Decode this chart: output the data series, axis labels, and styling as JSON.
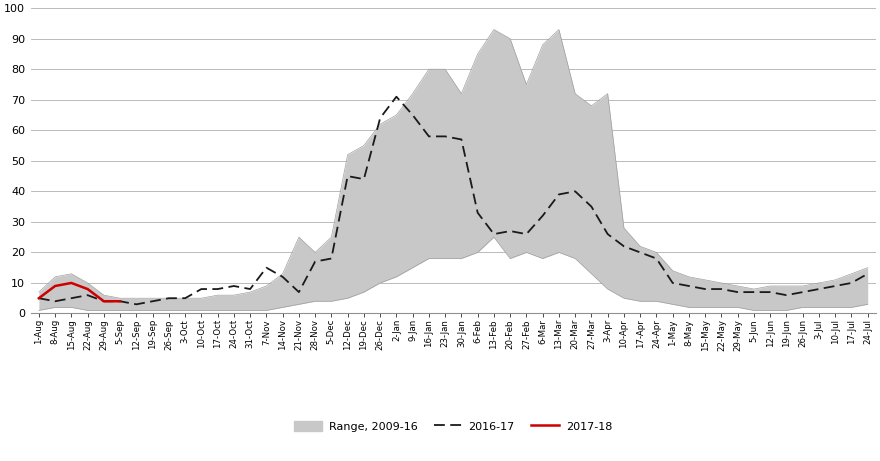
{
  "x_labels": [
    "1-Aug",
    "8-Aug",
    "15-Aug",
    "22-Aug",
    "29-Aug",
    "5-Sep",
    "12-Sep",
    "19-Sep",
    "26-Sep",
    "3-Oct",
    "10-Oct",
    "17-Oct",
    "24-Oct",
    "31-Oct",
    "7-Nov",
    "14-Nov",
    "21-Nov",
    "28-Nov",
    "5-Dec",
    "12-Dec",
    "19-Dec",
    "26-Dec",
    "2-Jan",
    "9-Jan",
    "16-Jan",
    "23-Jan",
    "30-Jan",
    "6-Feb",
    "13-Feb",
    "20-Feb",
    "27-Feb",
    "6-Mar",
    "13-Mar",
    "20-Mar",
    "27-Mar",
    "3-Apr",
    "10-Apr",
    "17-Apr",
    "24-Apr",
    "1-May",
    "8-May",
    "15-May",
    "22-May",
    "29-May",
    "5-Jun",
    "12-Jun",
    "19-Jun",
    "26-Jun",
    "3-Jul",
    "10-Jul",
    "17-Jul",
    "24-Jul"
  ],
  "range_low": [
    1,
    2,
    2,
    1,
    1,
    1,
    1,
    1,
    1,
    1,
    1,
    1,
    1,
    1,
    1,
    2,
    3,
    4,
    4,
    5,
    7,
    10,
    12,
    15,
    18,
    18,
    18,
    20,
    25,
    18,
    20,
    18,
    20,
    18,
    13,
    8,
    5,
    4,
    4,
    3,
    2,
    2,
    2,
    2,
    1,
    1,
    1,
    2,
    2,
    2,
    2,
    3
  ],
  "range_high": [
    7,
    12,
    13,
    10,
    6,
    5,
    5,
    5,
    5,
    5,
    5,
    6,
    6,
    7,
    9,
    13,
    25,
    20,
    25,
    52,
    55,
    62,
    65,
    72,
    80,
    80,
    72,
    85,
    93,
    90,
    75,
    88,
    93,
    72,
    68,
    72,
    28,
    22,
    20,
    14,
    12,
    11,
    10,
    9,
    8,
    9,
    9,
    9,
    10,
    11,
    13,
    15
  ],
  "dashed_2016_17": [
    5,
    4,
    5,
    6,
    4,
    4,
    3,
    4,
    5,
    5,
    8,
    8,
    9,
    8,
    15,
    12,
    7,
    17,
    18,
    45,
    44,
    64,
    71,
    65,
    58,
    58,
    57,
    33,
    26,
    27,
    26,
    32,
    39,
    40,
    35,
    26,
    22,
    20,
    18,
    10,
    9,
    8,
    8,
    7,
    7,
    7,
    6,
    7,
    8,
    9,
    10,
    13
  ],
  "red_2017_18": [
    5,
    9,
    10,
    8,
    4,
    4,
    null,
    null,
    null,
    null,
    null,
    null,
    null,
    null,
    null,
    null,
    null,
    null,
    null,
    null,
    null,
    null,
    null,
    null,
    null,
    null,
    null,
    null,
    null,
    null,
    null,
    null,
    null,
    null,
    null,
    null,
    null,
    null,
    null,
    null,
    null,
    null,
    null,
    null,
    null,
    null,
    null,
    null,
    null,
    null,
    null,
    null
  ],
  "ylim": [
    0,
    100
  ],
  "yticks": [
    0,
    10,
    20,
    30,
    40,
    50,
    60,
    70,
    80,
    90,
    100
  ],
  "range_color": "#c8c8c8",
  "dashed_color": "#1a1a1a",
  "red_color": "#cc0000",
  "background_color": "#ffffff",
  "grid_color": "#b0b0b0",
  "legend_labels": [
    "Range, 2009-16",
    "2016-17",
    "2017-18"
  ]
}
